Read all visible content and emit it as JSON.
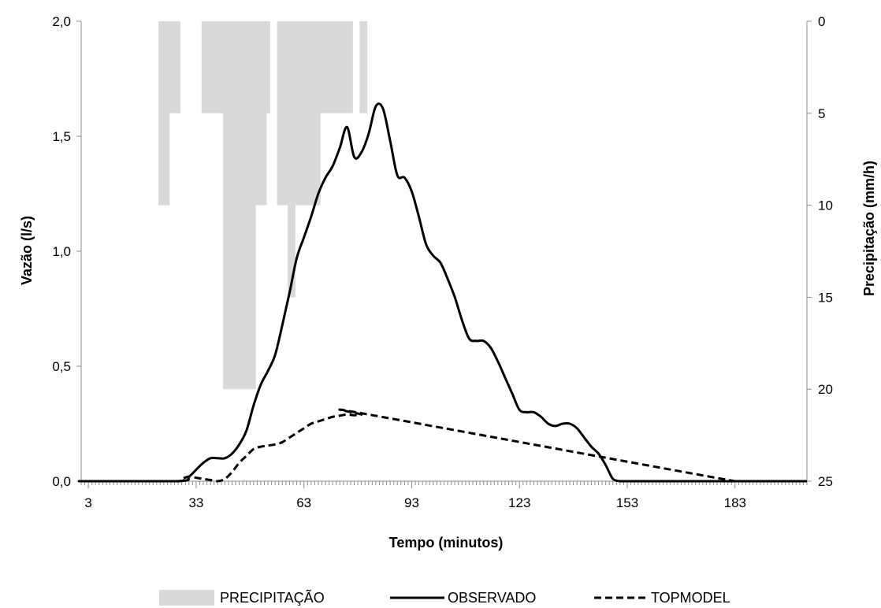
{
  "chart_data": {
    "type": "line",
    "x_axis": {
      "label": "Tempo (minutos)",
      "range": [
        1,
        203
      ],
      "tick_labels": [
        "3",
        "33",
        "63",
        "93",
        "123",
        "153",
        "183"
      ],
      "tick_values": [
        3,
        33,
        63,
        93,
        123,
        153,
        183
      ]
    },
    "y_axis_left": {
      "label": "Vazão (l/s)",
      "range": [
        0,
        2
      ],
      "tick_labels": [
        "0,0",
        "0,5",
        "1,0",
        "1,5",
        "2,0"
      ],
      "tick_values": [
        0,
        0.5,
        1.0,
        1.5,
        2.0
      ]
    },
    "y_axis_right": {
      "label": "Precipitação (mm/h)",
      "range": [
        0,
        25
      ],
      "inverted": true,
      "tick_labels": [
        "0",
        "5",
        "10",
        "15",
        "20",
        "25"
      ],
      "tick_values": [
        0,
        5,
        10,
        15,
        20,
        25
      ]
    },
    "grid": false,
    "legend": {
      "position": "bottom",
      "entries": [
        "PRECIPITAÇÃO",
        "OBSERVADO",
        "TOPMODEL"
      ]
    },
    "series": [
      {
        "name": "PRECIPITAÇÃO",
        "type": "bar",
        "axis": "right",
        "color": "#d9d9d9",
        "x": [
          23,
          24,
          25,
          26,
          27,
          28,
          29,
          30,
          31,
          32,
          33,
          34,
          35,
          36,
          37,
          38,
          39,
          40,
          41,
          42,
          43,
          44,
          45,
          46,
          47,
          48,
          49,
          50,
          51,
          52,
          53,
          54,
          55,
          56,
          57,
          58,
          59,
          60,
          61,
          62,
          63,
          64,
          65,
          66,
          67,
          68,
          69,
          70,
          71,
          72,
          73,
          74,
          75,
          76,
          77,
          78,
          79,
          80
        ],
        "values": [
          10,
          10,
          10,
          5,
          5,
          5,
          0,
          0,
          0,
          0,
          0,
          0,
          5,
          5,
          5,
          5,
          5,
          5,
          20,
          20,
          20,
          20,
          20,
          20,
          20,
          20,
          20,
          10,
          10,
          10,
          5,
          0,
          0,
          10,
          10,
          10,
          15,
          15,
          10,
          10,
          10,
          10,
          10,
          10,
          10,
          5,
          5,
          5,
          5,
          5,
          5,
          5,
          5,
          5,
          0,
          0,
          5,
          5
        ]
      },
      {
        "name": "OBSERVADO",
        "type": "line",
        "axis": "left",
        "color": "#000000",
        "dash": "solid",
        "x": [
          1,
          3,
          28,
          31,
          33,
          35,
          37,
          39,
          41,
          43,
          45,
          47,
          49,
          51,
          53,
          55,
          57,
          59,
          61,
          63,
          65,
          67,
          69,
          71,
          73,
          75,
          77,
          79,
          81,
          83,
          85,
          87,
          89,
          91,
          93,
          95,
          97,
          99,
          101,
          103,
          105,
          107,
          109,
          111,
          113,
          115,
          117,
          119,
          121,
          123,
          125,
          127,
          129,
          131,
          133,
          135,
          137,
          139,
          141,
          143,
          145,
          147,
          149,
          151,
          153,
          155,
          157,
          159,
          161,
          163,
          165,
          167,
          169,
          171,
          185,
          203
        ],
        "values": [
          0,
          0,
          0,
          0.02,
          0.05,
          0.08,
          0.1,
          0.1,
          0.1,
          0.12,
          0.16,
          0.22,
          0.33,
          0.42,
          0.48,
          0.55,
          0.68,
          0.82,
          0.97,
          1.06,
          1.15,
          1.25,
          1.32,
          1.37,
          1.45,
          1.54,
          1.41,
          1.43,
          1.51,
          1.63,
          1.62,
          1.48,
          1.33,
          1.32,
          1.26,
          1.15,
          1.03,
          0.98,
          0.95,
          0.88,
          0.8,
          0.7,
          0.62,
          0.61,
          0.61,
          0.58,
          0.52,
          0.45,
          0.38,
          0.31,
          0.3,
          0.3,
          0.28,
          0.25,
          0.24,
          0.25,
          0.25,
          0.23,
          0.19,
          0.15,
          0.12,
          0.07,
          0.01,
          0,
          0,
          0,
          0,
          0,
          0,
          0,
          0,
          0,
          0,
          0,
          0,
          0
        ]
      },
      {
        "name": "TOPMODEL",
        "type": "line",
        "axis": "left",
        "color": "#000000",
        "dash": "dashed",
        "x": [
          1,
          3,
          27,
          29,
          31,
          33,
          35,
          37,
          39,
          41,
          43,
          45,
          47,
          49,
          51,
          53,
          55,
          57,
          59,
          61,
          63,
          65,
          67,
          69,
          71,
          73,
          75,
          77,
          79,
          81,
          183,
          186,
          203
        ],
        "values": [
          0,
          0,
          0,
          0.01,
          0.02,
          0.015,
          0.01,
          0.005,
          0,
          0.01,
          0.04,
          0.08,
          0.11,
          0.14,
          0.15,
          0.155,
          0.16,
          0.17,
          0.19,
          0.21,
          0.23,
          0.25,
          0.26,
          0.27,
          0.28,
          0.285,
          0.29,
          0.287,
          0.29,
          0.29,
          0.0,
          0,
          0
        ]
      }
    ]
  }
}
